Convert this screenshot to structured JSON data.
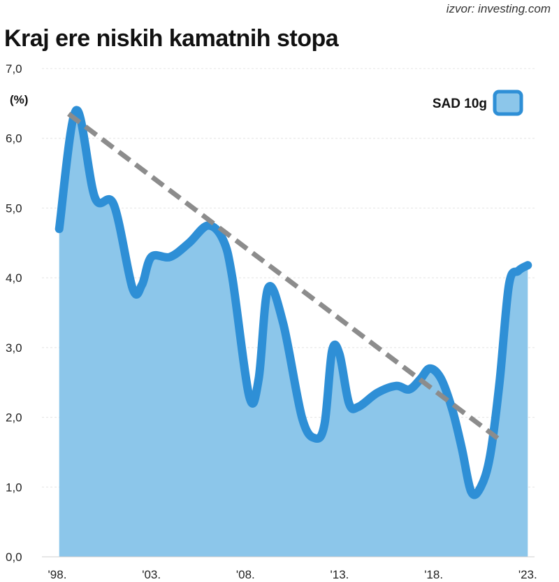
{
  "source_label": "izvor: investing.com",
  "chart_data": {
    "type": "area",
    "title": "Kraj ere niskih kamatnih stopa",
    "ylabel": "(%)",
    "ylim": [
      0,
      7
    ],
    "yticks": [
      "0,0",
      "1,0",
      "2,0",
      "3,0",
      "4,0",
      "5,0",
      "6,0",
      "7,0"
    ],
    "ytick_values": [
      0,
      1,
      2,
      3,
      4,
      5,
      6,
      7
    ],
    "xlim": [
      1998,
      2023.1
    ],
    "xticks": [
      "'98.",
      "'03.",
      "'08.",
      "'13.",
      "'18.",
      "'23."
    ],
    "xtick_values": [
      1998,
      2003,
      2008,
      2013,
      2018,
      2023
    ],
    "grid": true,
    "legend_position": "top-right",
    "series": [
      {
        "name": "SAD 10g",
        "color": "#2e8fd6",
        "fill": "#8cc6ea",
        "x": [
          1998.1,
          1999.0,
          2000.0,
          2001.0,
          2002.0,
          2002.5,
          2003.0,
          2004.0,
          2005.0,
          2006.0,
          2006.8,
          2007.3,
          2008.2,
          2008.7,
          2009.2,
          2010.0,
          2011.0,
          2011.7,
          2012.2,
          2012.6,
          2013.0,
          2013.5,
          2014.0,
          2015.0,
          2016.0,
          2016.7,
          2017.3,
          2017.8,
          2018.4,
          2019.0,
          2019.5,
          2020.0,
          2020.5,
          2021.0,
          2021.5,
          2022.0,
          2022.5,
          2023.0
        ],
        "values": [
          4.7,
          6.4,
          5.15,
          5.05,
          3.85,
          3.9,
          4.3,
          4.3,
          4.5,
          4.75,
          4.55,
          4.0,
          2.3,
          2.55,
          3.85,
          3.35,
          2.0,
          1.7,
          1.9,
          2.95,
          2.9,
          2.2,
          2.15,
          2.35,
          2.45,
          2.4,
          2.55,
          2.7,
          2.55,
          2.1,
          1.55,
          0.93,
          1.0,
          1.45,
          2.5,
          3.9,
          4.1,
          4.18
        ]
      }
    ],
    "trendline": {
      "x": [
        1998.6,
        2021.4
      ],
      "values": [
        6.35,
        1.7
      ],
      "color": "#8c8c8c"
    }
  }
}
